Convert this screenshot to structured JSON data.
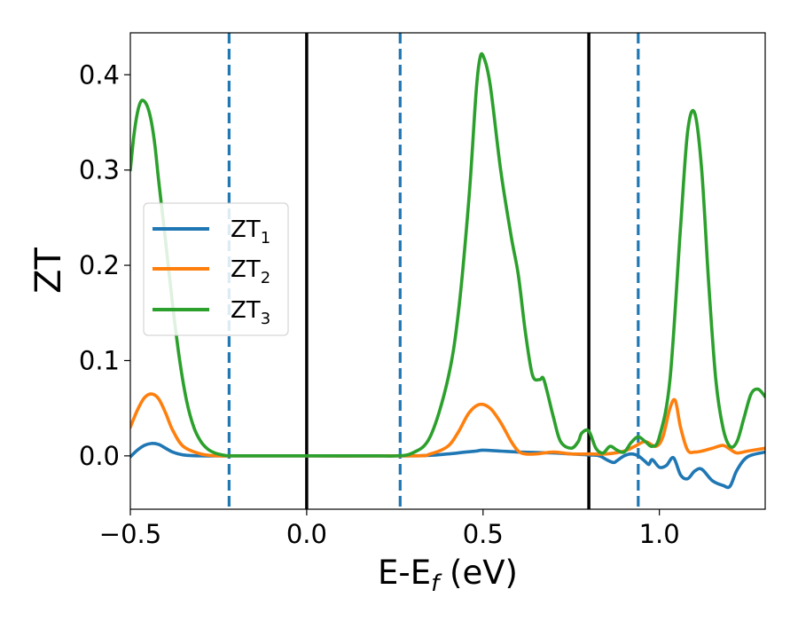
{
  "chart_data": {
    "type": "line",
    "xlabel": "E-E",
    "xlabel_sub": "f",
    "xlabel_unit": " (eV)",
    "ylabel": "ZT",
    "xlim": [
      -0.5,
      1.3
    ],
    "ylim": [
      -0.056,
      0.444
    ],
    "x_ticks": [
      -0.5,
      0.0,
      0.5,
      1.0
    ],
    "x_tick_labels": [
      "−0.5",
      "0.0",
      "0.5",
      "1.0"
    ],
    "y_ticks": [
      0.0,
      0.1,
      0.2,
      0.3,
      0.4
    ],
    "y_tick_labels": [
      "0.0",
      "0.1",
      "0.2",
      "0.3",
      "0.4"
    ],
    "grid": false,
    "legend_position": "center-left",
    "vertical_lines": [
      {
        "x": -0.22,
        "style": "dashed",
        "color": "#1f77b4"
      },
      {
        "x": 0.0,
        "style": "solid",
        "color": "#000000"
      },
      {
        "x": 0.265,
        "style": "dashed",
        "color": "#1f77b4"
      },
      {
        "x": 0.8,
        "style": "solid",
        "color": "#000000"
      },
      {
        "x": 0.94,
        "style": "dashed",
        "color": "#1f77b4"
      }
    ],
    "series": [
      {
        "name": "ZT",
        "name_sub": "1",
        "color": "#1f77b4",
        "x": [
          -0.5,
          -0.48,
          -0.46,
          -0.44,
          -0.42,
          -0.4,
          -0.38,
          -0.35,
          -0.3,
          -0.25,
          -0.2,
          0.0,
          0.3,
          0.4,
          0.45,
          0.48,
          0.5,
          0.55,
          0.6,
          0.7,
          0.75,
          0.8,
          0.83,
          0.85,
          0.87,
          0.88,
          0.9,
          0.92,
          0.94,
          0.96,
          0.97,
          0.98,
          1.0,
          1.02,
          1.04,
          1.06,
          1.08,
          1.1,
          1.12,
          1.15,
          1.18,
          1.2,
          1.22,
          1.25,
          1.3
        ],
        "y": [
          -0.001,
          0.006,
          0.011,
          0.013,
          0.012,
          0.008,
          0.004,
          0.001,
          0.0,
          0.0,
          0.0,
          0.0,
          0.0,
          0.002,
          0.004,
          0.005,
          0.006,
          0.005,
          0.004,
          0.003,
          0.002,
          0.001,
          0.0,
          -0.004,
          -0.007,
          -0.005,
          0.0,
          0.002,
          0.0,
          -0.006,
          -0.009,
          -0.004,
          -0.012,
          -0.01,
          -0.002,
          -0.02,
          -0.024,
          -0.016,
          -0.014,
          -0.026,
          -0.031,
          -0.032,
          -0.015,
          -0.001,
          0.004
        ]
      },
      {
        "name": "ZT",
        "name_sub": "2",
        "color": "#ff7f0e",
        "x": [
          -0.5,
          -0.48,
          -0.46,
          -0.44,
          -0.42,
          -0.4,
          -0.38,
          -0.35,
          -0.3,
          -0.25,
          -0.2,
          0.0,
          0.3,
          0.35,
          0.4,
          0.43,
          0.46,
          0.49,
          0.52,
          0.55,
          0.58,
          0.6,
          0.62,
          0.65,
          0.7,
          0.75,
          0.8,
          0.85,
          0.9,
          0.93,
          0.96,
          0.99,
          1.01,
          1.03,
          1.045,
          1.06,
          1.08,
          1.1,
          1.12,
          1.15,
          1.18,
          1.2,
          1.22,
          1.25,
          1.3
        ],
        "y": [
          0.03,
          0.048,
          0.061,
          0.065,
          0.06,
          0.045,
          0.027,
          0.01,
          0.002,
          0.0,
          0.0,
          0.0,
          0.0,
          0.002,
          0.01,
          0.025,
          0.045,
          0.054,
          0.05,
          0.035,
          0.015,
          0.005,
          0.002,
          0.002,
          0.004,
          0.002,
          0.002,
          0.002,
          0.005,
          0.01,
          0.015,
          0.01,
          0.02,
          0.05,
          0.058,
          0.03,
          0.006,
          0.004,
          0.005,
          0.008,
          0.011,
          0.007,
          0.003,
          0.005,
          0.008
        ]
      },
      {
        "name": "ZT",
        "name_sub": "3",
        "color": "#2ca02c",
        "x": [
          -0.5,
          -0.49,
          -0.48,
          -0.47,
          -0.46,
          -0.45,
          -0.44,
          -0.43,
          -0.42,
          -0.4,
          -0.38,
          -0.36,
          -0.34,
          -0.32,
          -0.3,
          -0.28,
          -0.26,
          -0.24,
          -0.22,
          -0.2,
          0.0,
          0.2,
          0.25,
          0.3,
          0.35,
          0.4,
          0.43,
          0.46,
          0.48,
          0.49,
          0.5,
          0.52,
          0.55,
          0.58,
          0.6,
          0.62,
          0.64,
          0.66,
          0.67,
          0.68,
          0.7,
          0.72,
          0.75,
          0.77,
          0.78,
          0.8,
          0.82,
          0.84,
          0.86,
          0.88,
          0.9,
          0.92,
          0.94,
          0.96,
          0.98,
          1.0,
          1.03,
          1.06,
          1.08,
          1.1,
          1.12,
          1.14,
          1.16,
          1.18,
          1.2,
          1.22,
          1.24,
          1.26,
          1.28,
          1.3
        ],
        "y": [
          0.3,
          0.336,
          0.36,
          0.372,
          0.372,
          0.365,
          0.35,
          0.325,
          0.29,
          0.225,
          0.158,
          0.1,
          0.057,
          0.03,
          0.015,
          0.007,
          0.003,
          0.001,
          0.0,
          0.0,
          0.0,
          0.0,
          0.0,
          0.003,
          0.02,
          0.08,
          0.15,
          0.27,
          0.38,
          0.415,
          0.42,
          0.39,
          0.3,
          0.23,
          0.19,
          0.13,
          0.085,
          0.08,
          0.082,
          0.07,
          0.04,
          0.015,
          0.008,
          0.015,
          0.024,
          0.026,
          0.008,
          0.003,
          0.01,
          0.006,
          0.004,
          0.014,
          0.02,
          0.015,
          0.01,
          0.02,
          0.08,
          0.24,
          0.34,
          0.36,
          0.3,
          0.18,
          0.08,
          0.03,
          0.01,
          0.015,
          0.04,
          0.065,
          0.07,
          0.062
        ]
      }
    ]
  }
}
